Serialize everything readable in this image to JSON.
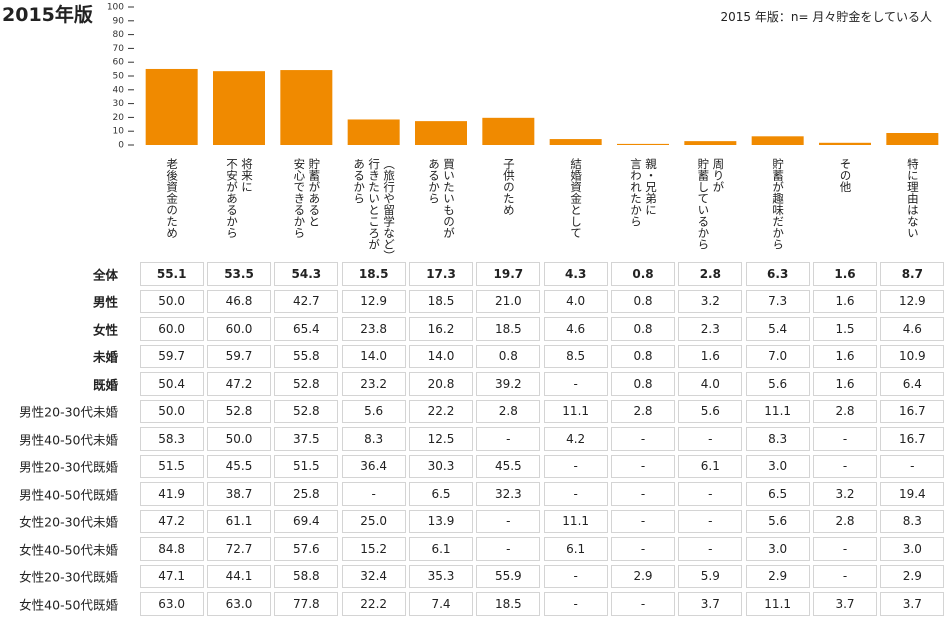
{
  "chart_data": {
    "type": "bar",
    "title": "2015年版",
    "subtitle": "2015 年版：n= 月々貯金をしている人",
    "categories": [
      "老後資金のため",
      "将来に\n不安があるから",
      "貯蓄があると\n安心できるから",
      "（旅行や留学など）\n行きたいところが\nあるから",
      "買いたいものが\nあるから",
      "子供のため",
      "結婚資金として",
      "親・兄弟に\n言われたから",
      "周りが\n貯蓄しているから",
      "貯蓄が趣味だから",
      "その他",
      "特に理由はない"
    ],
    "series": [
      {
        "name": "全体",
        "color": "#f08a00",
        "values": [
          55.1,
          53.5,
          54.3,
          18.5,
          17.3,
          19.7,
          4.3,
          0.8,
          2.8,
          6.3,
          1.6,
          8.7
        ]
      }
    ],
    "ylim": [
      0,
      100
    ],
    "yticks": [
      0,
      10,
      20,
      30,
      40,
      50,
      60,
      70,
      80,
      90,
      100
    ]
  },
  "table": {
    "rows": [
      {
        "label": "男性",
        "cells": [
          "50.0",
          "46.8",
          "42.7",
          "12.9",
          "18.5",
          "21.0",
          "4.0",
          "0.8",
          "3.2",
          "7.3",
          "1.6",
          "12.9"
        ]
      },
      {
        "label": "女性",
        "cells": [
          "60.0",
          "60.0",
          "65.4",
          "23.8",
          "16.2",
          "18.5",
          "4.6",
          "0.8",
          "2.3",
          "5.4",
          "1.5",
          "4.6"
        ]
      },
      {
        "label": "未婚",
        "cells": [
          "59.7",
          "59.7",
          "55.8",
          "14.0",
          "14.0",
          "0.8",
          "8.5",
          "0.8",
          "1.6",
          "7.0",
          "1.6",
          "10.9"
        ]
      },
      {
        "label": "既婚",
        "cells": [
          "50.4",
          "47.2",
          "52.8",
          "23.2",
          "20.8",
          "39.2",
          "-",
          "0.8",
          "4.0",
          "5.6",
          "1.6",
          "6.4"
        ]
      },
      {
        "label": "男性20-30代未婚",
        "cells": [
          "50.0",
          "52.8",
          "52.8",
          "5.6",
          "22.2",
          "2.8",
          "11.1",
          "2.8",
          "5.6",
          "11.1",
          "2.8",
          "16.7"
        ]
      },
      {
        "label": "男性40-50代未婚",
        "cells": [
          "58.3",
          "50.0",
          "37.5",
          "8.3",
          "12.5",
          "-",
          "4.2",
          "-",
          "-",
          "8.3",
          "-",
          "16.7"
        ]
      },
      {
        "label": "男性20-30代既婚",
        "cells": [
          "51.5",
          "45.5",
          "51.5",
          "36.4",
          "30.3",
          "45.5",
          "-",
          "-",
          "6.1",
          "3.0",
          "-",
          "-"
        ]
      },
      {
        "label": "男性40-50代既婚",
        "cells": [
          "41.9",
          "38.7",
          "25.8",
          "-",
          "6.5",
          "32.3",
          "-",
          "-",
          "-",
          "6.5",
          "3.2",
          "19.4"
        ]
      },
      {
        "label": "女性20-30代未婚",
        "cells": [
          "47.2",
          "61.1",
          "69.4",
          "25.0",
          "13.9",
          "-",
          "11.1",
          "-",
          "-",
          "5.6",
          "2.8",
          "8.3"
        ]
      },
      {
        "label": "女性40-50代未婚",
        "cells": [
          "84.8",
          "72.7",
          "57.6",
          "15.2",
          "6.1",
          "-",
          "6.1",
          "-",
          "-",
          "3.0",
          "-",
          "3.0"
        ]
      },
      {
        "label": "女性20-30代既婚",
        "cells": [
          "47.1",
          "44.1",
          "58.8",
          "32.4",
          "35.3",
          "55.9",
          "-",
          "2.9",
          "5.9",
          "2.9",
          "-",
          "2.9"
        ]
      },
      {
        "label": "女性40-50代既婚",
        "cells": [
          "63.0",
          "63.0",
          "77.8",
          "22.2",
          "7.4",
          "18.5",
          "-",
          "-",
          "3.7",
          "11.1",
          "3.7",
          "3.7"
        ]
      }
    ]
  }
}
